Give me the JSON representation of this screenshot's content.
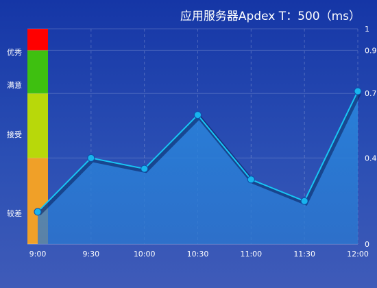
{
  "chart_data": {
    "type": "line",
    "title": "应用服务器Apdex T：500（ms）",
    "categories": [
      "9:00",
      "9:30",
      "10:00",
      "10:30",
      "11:00",
      "11:30",
      "12:00"
    ],
    "series": [
      {
        "values": [
          0.15,
          0.4,
          0.35,
          0.6,
          0.3,
          0.2,
          0.71
        ]
      }
    ],
    "ylim": [
      0,
      1
    ],
    "yticks": [
      {
        "value": 0,
        "label": "0"
      },
      {
        "value": 0.4,
        "label": "0.4"
      },
      {
        "value": 0.7,
        "label": "0.7"
      },
      {
        "value": 0.9,
        "label": "0.9"
      },
      {
        "value": 1,
        "label": "1"
      }
    ],
    "bands": [
      {
        "label": "较差",
        "from": 0,
        "to": 0.4,
        "color": "#f0a028"
      },
      {
        "label": "接受",
        "from": 0.4,
        "to": 0.7,
        "color": "#b8d80a"
      },
      {
        "label": "满意",
        "from": 0.7,
        "to": 0.9,
        "color": "#3ec010"
      },
      {
        "label": "优秀",
        "from": 0.9,
        "to": 1,
        "color": "#ff0000"
      }
    ],
    "grid": true,
    "colors": {
      "line": "#18c6f4",
      "area": "#2a82d6",
      "point": "#18b4ee"
    }
  }
}
